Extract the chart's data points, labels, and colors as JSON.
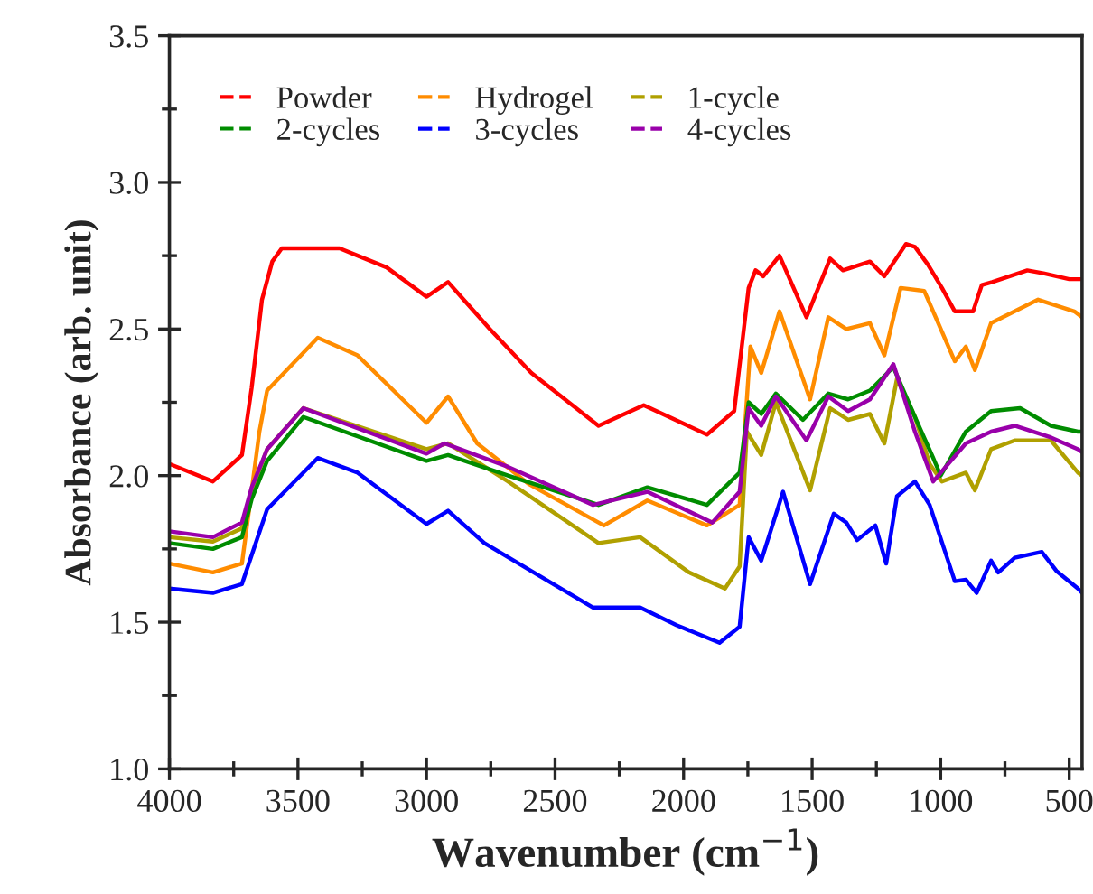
{
  "chart_data": {
    "type": "line",
    "xlabel": "Wavenumber (cm$^{−1}$)",
    "ylabel": "Absorbance (arb. unit)",
    "xlim": [
      4000,
      450
    ],
    "ylim": [
      1.0,
      3.5
    ],
    "xticks": [
      4000,
      {
        "value": 3750,
        "label": null
      },
      3500,
      {
        "value": 3250,
        "label": null
      },
      3000,
      {
        "value": 2750,
        "label": null
      },
      2500,
      {
        "value": 2250,
        "label": null
      },
      2000,
      {
        "value": 1750,
        "label": null
      },
      1500,
      {
        "value": 1250,
        "label": null
      },
      1000,
      {
        "value": 750,
        "label": null
      },
      500
    ],
    "yticks": [
      {
        "value": 1.0,
        "label": "1.0"
      },
      {
        "value": 1.25,
        "label": null
      },
      {
        "value": 1.5,
        "label": "1.5"
      },
      {
        "value": 1.75,
        "label": null
      },
      {
        "value": 2.0,
        "label": "2.0"
      },
      {
        "value": 2.25,
        "label": null
      },
      {
        "value": 2.5,
        "label": "2.5"
      },
      {
        "value": 2.75,
        "label": null
      },
      {
        "value": 3.0,
        "label": "3.0"
      },
      {
        "value": 3.25,
        "label": null
      },
      {
        "value": 3.5,
        "label": "3.5"
      }
    ],
    "legend": "top left",
    "grid": false,
    "line_style": "solid",
    "marker": "none",
    "series": [
      {
        "name": "Powder",
        "color": "#ff0000",
        "x": [
          4000,
          3831,
          3718,
          3680,
          3640,
          3600,
          3563,
          3338,
          3268,
          3155,
          3000,
          2916,
          2754,
          2592,
          2331,
          2155,
          1909,
          1803,
          1747,
          1720,
          1690,
          1627,
          1522,
          1430,
          1380,
          1275,
          1219,
          1135,
          1100,
          1050,
          995,
          945,
          874,
          840,
          800,
          663,
          600,
          500,
          450
        ],
        "values": [
          2.04,
          1.98,
          2.07,
          2.3,
          2.6,
          2.73,
          2.775,
          2.775,
          2.75,
          2.71,
          2.61,
          2.66,
          2.5,
          2.35,
          2.17,
          2.24,
          2.14,
          2.22,
          2.64,
          2.7,
          2.68,
          2.75,
          2.54,
          2.74,
          2.7,
          2.73,
          2.68,
          2.79,
          2.78,
          2.72,
          2.64,
          2.56,
          2.56,
          2.65,
          2.66,
          2.7,
          2.69,
          2.67,
          2.67
        ]
      },
      {
        "name": "Hydrogel",
        "color": "#ff8c00",
        "x": [
          4000,
          3831,
          3718,
          3680,
          3650,
          3620,
          3423,
          3268,
          3000,
          2916,
          2803,
          2600,
          2310,
          2141,
          1909,
          1782,
          1740,
          1698,
          1627,
          1508,
          1437,
          1367,
          1275,
          1219,
          1156,
          1064,
          945,
          902,
          867,
          804,
          621,
          480,
          450
        ],
        "values": [
          1.7,
          1.67,
          1.7,
          1.95,
          2.15,
          2.29,
          2.47,
          2.41,
          2.18,
          2.27,
          2.11,
          1.97,
          1.83,
          1.915,
          1.83,
          1.9,
          2.44,
          2.35,
          2.56,
          2.26,
          2.54,
          2.5,
          2.52,
          2.41,
          2.64,
          2.63,
          2.39,
          2.44,
          2.36,
          2.52,
          2.6,
          2.56,
          2.54
        ]
      },
      {
        "name": "1-cycle",
        "color": "#b0a000",
        "x": [
          4000,
          3831,
          3718,
          3680,
          3620,
          3479,
          3000,
          2916,
          2683,
          2331,
          2169,
          1979,
          1839,
          1782,
          1754,
          1698,
          1641,
          1508,
          1430,
          1360,
          1275,
          1219,
          1170,
          1100,
          1043,
          995,
          902,
          867,
          804,
          712,
          571,
          466,
          450
        ],
        "values": [
          1.79,
          1.775,
          1.82,
          1.95,
          2.09,
          2.23,
          2.09,
          2.11,
          1.98,
          1.77,
          1.79,
          1.67,
          1.615,
          1.69,
          2.15,
          2.07,
          2.25,
          1.95,
          2.23,
          2.19,
          2.21,
          2.11,
          2.33,
          2.2,
          2.04,
          1.98,
          2.01,
          1.95,
          2.09,
          2.12,
          2.12,
          2.01,
          2.0
        ]
      },
      {
        "name": "2-cycles",
        "color": "#008c00",
        "x": [
          4000,
          3831,
          3718,
          3680,
          3620,
          3479,
          3000,
          2916,
          2683,
          2331,
          2141,
          1909,
          1782,
          1747,
          1698,
          1641,
          1536,
          1437,
          1360,
          1275,
          1184,
          1100,
          1029,
          1000,
          902,
          804,
          691,
          571,
          466,
          450
        ],
        "values": [
          1.77,
          1.75,
          1.79,
          1.92,
          2.05,
          2.2,
          2.05,
          2.07,
          2.0,
          1.9,
          1.96,
          1.9,
          2.01,
          2.25,
          2.21,
          2.28,
          2.19,
          2.28,
          2.26,
          2.29,
          2.37,
          2.2,
          2.06,
          2.0,
          2.15,
          2.22,
          2.23,
          2.17,
          2.15,
          2.15
        ]
      },
      {
        "name": "3-cycles",
        "color": "#0000ff",
        "x": [
          4000,
          3831,
          3718,
          3620,
          3423,
          3268,
          3000,
          2916,
          2775,
          2564,
          2352,
          2169,
          2028,
          1860,
          1782,
          1747,
          1698,
          1613,
          1508,
          1416,
          1367,
          1325,
          1254,
          1212,
          1170,
          1100,
          1043,
          945,
          902,
          860,
          804,
          776,
          712,
          607,
          550,
          466,
          450
        ],
        "values": [
          1.615,
          1.6,
          1.63,
          1.885,
          2.06,
          2.01,
          1.835,
          1.88,
          1.77,
          1.66,
          1.55,
          1.55,
          1.49,
          1.43,
          1.485,
          1.79,
          1.71,
          1.945,
          1.63,
          1.87,
          1.84,
          1.78,
          1.83,
          1.7,
          1.93,
          1.98,
          1.9,
          1.64,
          1.645,
          1.6,
          1.71,
          1.67,
          1.72,
          1.74,
          1.675,
          1.615,
          1.6
        ]
      },
      {
        "name": "4-cycles",
        "color": "#9900aa",
        "x": [
          4000,
          3831,
          3718,
          3680,
          3620,
          3479,
          3000,
          2930,
          2683,
          2352,
          2141,
          1888,
          1782,
          1747,
          1698,
          1641,
          1522,
          1437,
          1360,
          1275,
          1184,
          1100,
          1029,
          902,
          804,
          712,
          571,
          466,
          450
        ],
        "values": [
          1.81,
          1.79,
          1.84,
          1.96,
          2.09,
          2.23,
          2.075,
          2.11,
          2.03,
          1.9,
          1.945,
          1.84,
          1.945,
          2.23,
          2.17,
          2.27,
          2.12,
          2.27,
          2.22,
          2.26,
          2.38,
          2.15,
          1.98,
          2.11,
          2.15,
          2.17,
          2.13,
          2.09,
          2.08
        ]
      }
    ]
  }
}
